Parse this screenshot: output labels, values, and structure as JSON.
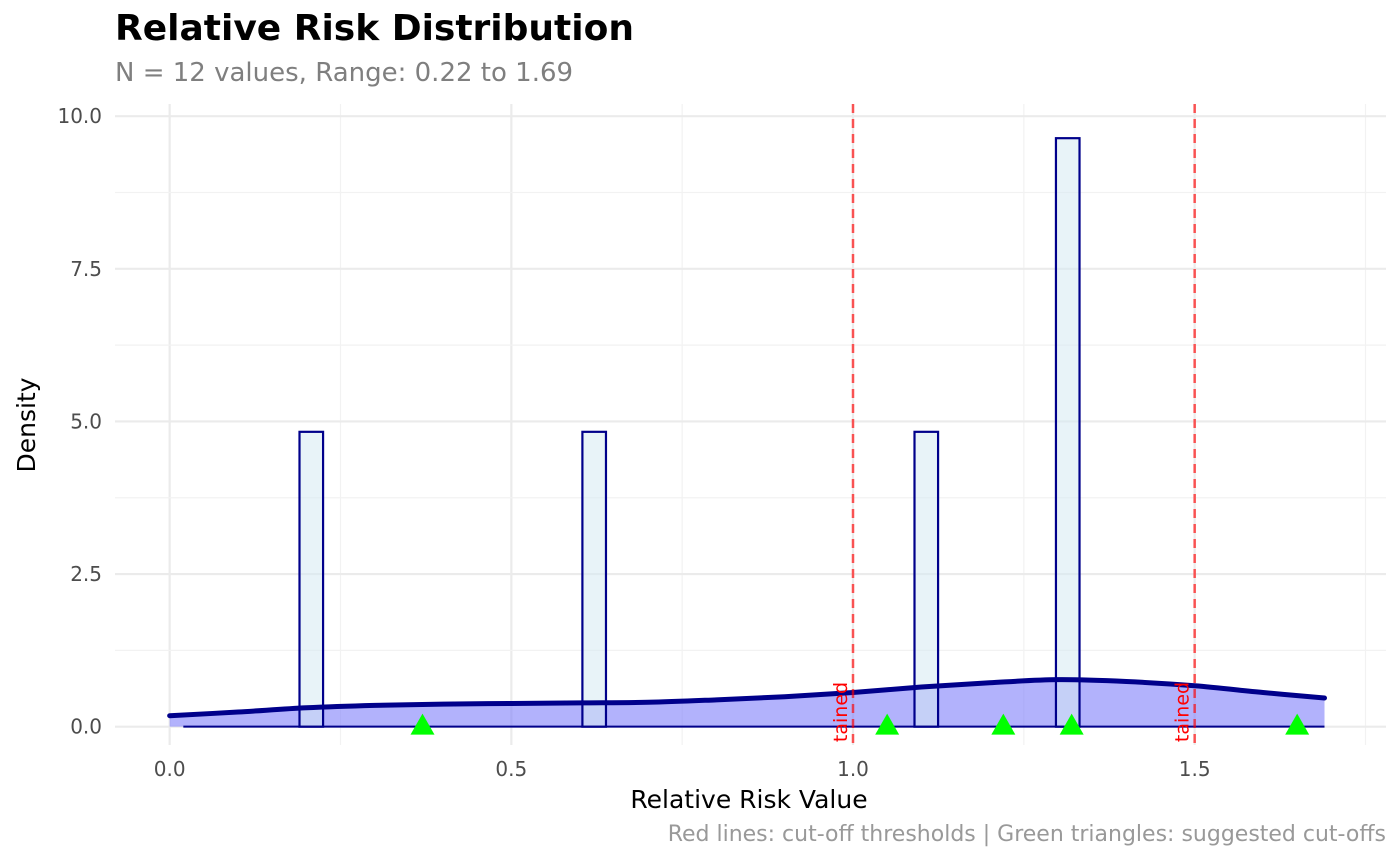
{
  "chart_data": {
    "type": "histogram",
    "title": "Relative Risk Distribution",
    "subtitle": "N = 12 values, Range: 0.22 to 1.69",
    "xlabel": "Relative Risk Value",
    "ylabel": "Density",
    "caption": "Red lines: cut-off thresholds | Green triangles: suggested cut-offs",
    "xlim": [
      -0.08,
      1.78
    ],
    "ylim": [
      -0.3,
      10.2
    ],
    "x_ticks": [
      0.0,
      0.5,
      1.0,
      1.5
    ],
    "x_tick_labels": [
      "0.0",
      "0.5",
      "1.0",
      "1.5"
    ],
    "y_ticks": [
      0.0,
      2.5,
      5.0,
      7.5,
      10.0
    ],
    "y_tick_labels": [
      "0.0",
      "2.5",
      "5.0",
      "7.5",
      "10.0"
    ],
    "grid": true,
    "histogram": {
      "fill": "#d6eaf2",
      "stroke": "#00008b",
      "bins": [
        {
          "x0": 0.19,
          "x1": 0.2245,
          "density": 4.83
        },
        {
          "x0": 0.604,
          "x1": 0.6385,
          "density": 4.83
        },
        {
          "x0": 1.09,
          "x1": 1.1245,
          "density": 4.83
        },
        {
          "x0": 1.297,
          "x1": 1.3315,
          "density": 9.64
        }
      ]
    },
    "density_curve": {
      "stroke": "#00008b",
      "fill": "#7f7ffa",
      "points": [
        [
          0.0,
          0.18
        ],
        [
          0.1,
          0.24
        ],
        [
          0.2,
          0.31
        ],
        [
          0.3,
          0.35
        ],
        [
          0.4,
          0.37
        ],
        [
          0.5,
          0.38
        ],
        [
          0.6,
          0.39
        ],
        [
          0.7,
          0.4
        ],
        [
          0.8,
          0.44
        ],
        [
          0.9,
          0.49
        ],
        [
          1.0,
          0.56
        ],
        [
          1.1,
          0.65
        ],
        [
          1.2,
          0.72
        ],
        [
          1.3,
          0.77
        ],
        [
          1.4,
          0.74
        ],
        [
          1.5,
          0.67
        ],
        [
          1.6,
          0.56
        ],
        [
          1.69,
          0.47
        ]
      ]
    },
    "thresholds": [
      {
        "x": 1.0,
        "label": "tained",
        "color": "#ff0000"
      },
      {
        "x": 1.5,
        "label": "tained",
        "color": "#ff0000"
      }
    ],
    "suggested_cutoffs": {
      "color": "#00ff00",
      "x": [
        0.37,
        1.05,
        1.22,
        1.32,
        1.65
      ]
    }
  }
}
